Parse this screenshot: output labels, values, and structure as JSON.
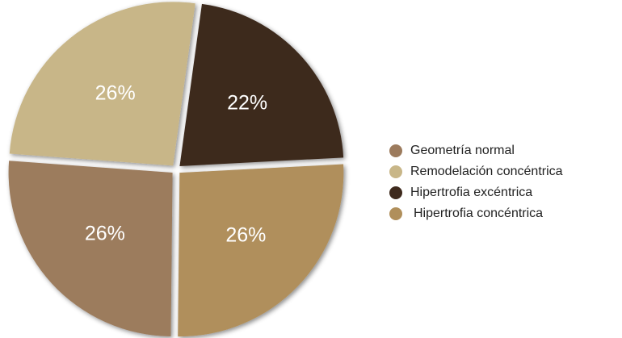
{
  "chart_data": {
    "type": "pie",
    "categories": [
      "Geometría normal",
      "Remodelación concéntrica",
      "Hipertrofia excéntrica",
      "Hipertrofia concéntrica"
    ],
    "values": [
      26,
      26,
      22,
      26
    ],
    "value_labels": [
      "26%",
      "26%",
      "22%",
      "26%"
    ],
    "colors": [
      "#9c7b5d",
      "#c8b688",
      "#3e2a1d",
      "#b08f5b"
    ]
  }
}
